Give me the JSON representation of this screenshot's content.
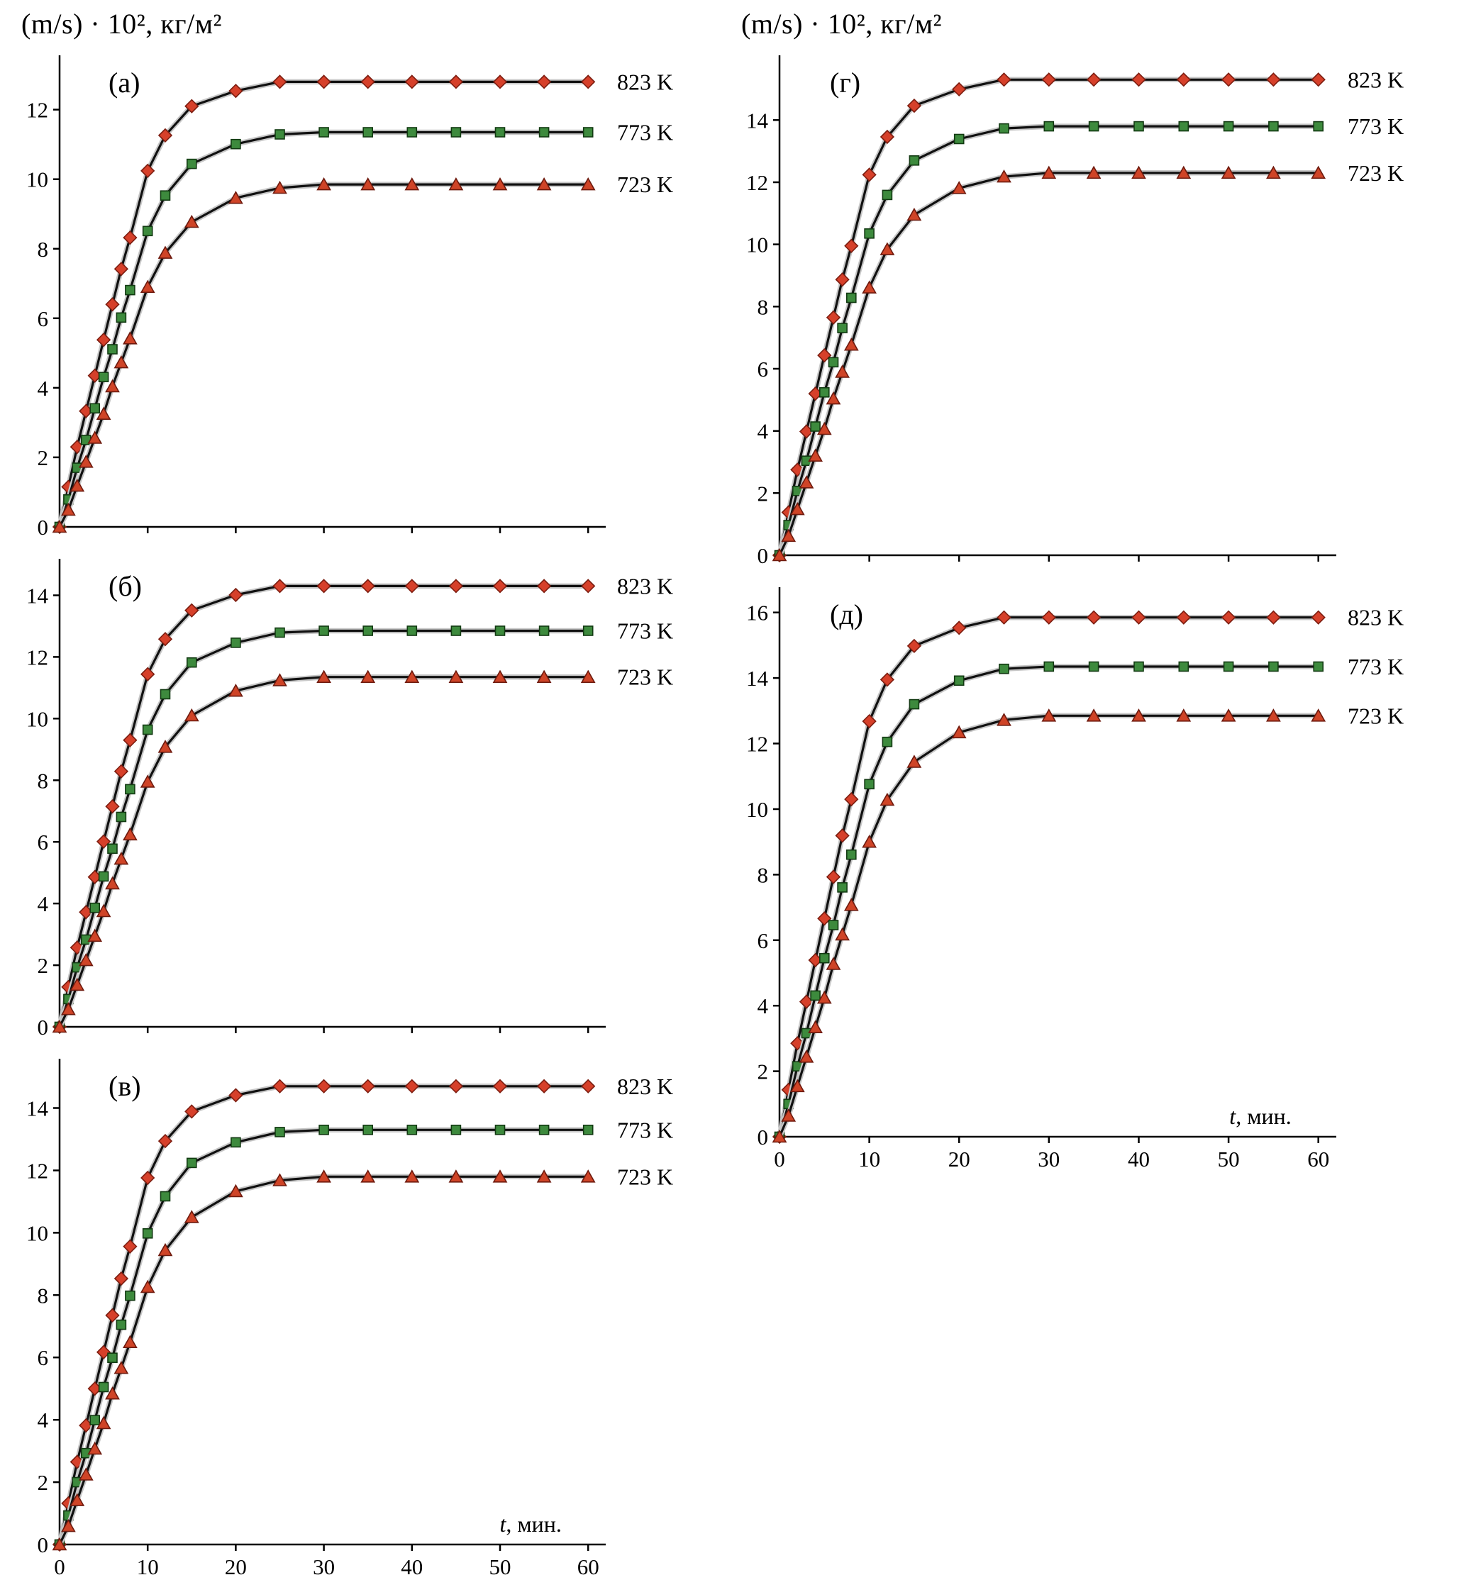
{
  "y_axis_title": "(m/s) · 10², кг/м²",
  "x_axis_title": "t, мин.",
  "colors": {
    "line": "#111111",
    "line_halo": "#c7c7c7",
    "axis": "#000000",
    "series_823_fill": "#d6402a",
    "series_823_stroke": "#7c1d10",
    "series_773_fill": "#3d8a3d",
    "series_773_stroke": "#123a12",
    "series_723_fill": "#cf4427",
    "series_723_stroke": "#6e1a0e"
  },
  "chart_data": [
    {
      "type": "line",
      "panel": "(а)",
      "xlabel": null,
      "xlim": [
        0,
        62
      ],
      "ylim": [
        0,
        13.4
      ],
      "x_ticks": [
        0,
        10,
        20,
        30,
        40,
        50,
        60
      ],
      "show_x_tick_labels": false,
      "y_ticks": [
        0,
        2,
        4,
        6,
        8,
        10,
        12
      ],
      "x": [
        0,
        1,
        2,
        3,
        4,
        5,
        6,
        7,
        8,
        10,
        12,
        15,
        20,
        25,
        30,
        35,
        40,
        45,
        50,
        55,
        60
      ],
      "series": [
        {
          "name": "823 K",
          "marker": "diamond",
          "fill": "#d6402a",
          "stroke": "#7c1d10",
          "values": [
            0,
            1.15,
            2.3,
            3.33,
            4.35,
            5.38,
            6.4,
            7.42,
            8.32,
            10.24,
            11.26,
            12.1,
            12.54,
            12.8,
            12.8,
            12.8,
            12.8,
            12.8,
            12.8,
            12.8,
            12.8
          ]
        },
        {
          "name": "773 K",
          "marker": "square",
          "fill": "#3d8a3d",
          "stroke": "#123a12",
          "values": [
            0,
            0.79,
            1.7,
            2.5,
            3.41,
            4.31,
            5.11,
            6.02,
            6.81,
            8.51,
            9.53,
            10.44,
            11.01,
            11.29,
            11.35,
            11.35,
            11.35,
            11.35,
            11.35,
            11.35,
            11.35
          ]
        },
        {
          "name": "723 K",
          "marker": "triangle",
          "fill": "#cf4427",
          "stroke": "#6e1a0e",
          "values": [
            0,
            0.49,
            1.18,
            1.87,
            2.56,
            3.25,
            4.04,
            4.73,
            5.42,
            6.9,
            7.88,
            8.77,
            9.46,
            9.75,
            9.85,
            9.85,
            9.85,
            9.85,
            9.85,
            9.85,
            9.85
          ]
        }
      ]
    },
    {
      "type": "line",
      "panel": "(б)",
      "xlabel": null,
      "xlim": [
        0,
        62
      ],
      "ylim": [
        0,
        15.0
      ],
      "x_ticks": [
        0,
        10,
        20,
        30,
        40,
        50,
        60
      ],
      "show_x_tick_labels": false,
      "y_ticks": [
        0,
        2,
        4,
        6,
        8,
        10,
        12,
        14
      ],
      "x": [
        0,
        1,
        2,
        3,
        4,
        5,
        6,
        7,
        8,
        10,
        12,
        15,
        20,
        25,
        30,
        35,
        40,
        45,
        50,
        55,
        60
      ],
      "series": [
        {
          "name": "823 K",
          "marker": "diamond",
          "fill": "#d6402a",
          "stroke": "#7c1d10",
          "values": [
            0,
            1.29,
            2.57,
            3.72,
            4.86,
            6.01,
            7.15,
            8.29,
            9.3,
            11.44,
            12.58,
            13.51,
            14.01,
            14.3,
            14.3,
            14.3,
            14.3,
            14.3,
            14.3,
            14.3,
            14.3
          ]
        },
        {
          "name": "773 K",
          "marker": "square",
          "fill": "#3d8a3d",
          "stroke": "#123a12",
          "values": [
            0,
            0.9,
            1.93,
            2.83,
            3.86,
            4.88,
            5.78,
            6.81,
            7.71,
            9.64,
            10.79,
            11.82,
            12.46,
            12.79,
            12.85,
            12.85,
            12.85,
            12.85,
            12.85,
            12.85,
            12.85
          ]
        },
        {
          "name": "723 K",
          "marker": "triangle",
          "fill": "#cf4427",
          "stroke": "#6e1a0e",
          "values": [
            0,
            0.57,
            1.36,
            2.16,
            2.95,
            3.75,
            4.65,
            5.45,
            6.24,
            7.95,
            9.08,
            10.1,
            10.9,
            11.24,
            11.35,
            11.35,
            11.35,
            11.35,
            11.35,
            11.35,
            11.35
          ]
        }
      ]
    },
    {
      "type": "line",
      "panel": "(в)",
      "xlabel": "t, мин.",
      "xlim": [
        0,
        62
      ],
      "ylim": [
        0,
        15.4
      ],
      "x_ticks": [
        0,
        10,
        20,
        30,
        40,
        50,
        60
      ],
      "show_x_tick_labels": true,
      "y_ticks": [
        0,
        2,
        4,
        6,
        8,
        10,
        12,
        14
      ],
      "x": [
        0,
        1,
        2,
        3,
        4,
        5,
        6,
        7,
        8,
        10,
        12,
        15,
        20,
        25,
        30,
        35,
        40,
        45,
        50,
        55,
        60
      ],
      "series": [
        {
          "name": "823 K",
          "marker": "diamond",
          "fill": "#d6402a",
          "stroke": "#7c1d10",
          "values": [
            0,
            1.32,
            2.65,
            3.82,
            5.0,
            6.17,
            7.35,
            8.53,
            9.56,
            11.76,
            12.94,
            13.89,
            14.41,
            14.7,
            14.7,
            14.7,
            14.7,
            14.7,
            14.7,
            14.7,
            14.7
          ]
        },
        {
          "name": "773 K",
          "marker": "square",
          "fill": "#3d8a3d",
          "stroke": "#123a12",
          "values": [
            0,
            0.93,
            2.0,
            2.93,
            3.99,
            5.05,
            5.99,
            7.05,
            7.98,
            9.98,
            11.17,
            12.24,
            12.9,
            13.23,
            13.3,
            13.3,
            13.3,
            13.3,
            13.3,
            13.3,
            13.3
          ]
        },
        {
          "name": "723 K",
          "marker": "triangle",
          "fill": "#cf4427",
          "stroke": "#6e1a0e",
          "values": [
            0,
            0.59,
            1.42,
            2.24,
            3.07,
            3.89,
            4.84,
            5.66,
            6.49,
            8.26,
            9.44,
            10.5,
            11.33,
            11.68,
            11.8,
            11.8,
            11.8,
            11.8,
            11.8,
            11.8,
            11.8
          ]
        }
      ]
    },
    {
      "type": "line",
      "panel": "(г)",
      "xlabel": null,
      "xlim": [
        0,
        62
      ],
      "ylim": [
        0,
        15.9
      ],
      "x_ticks": [
        0,
        10,
        20,
        30,
        40,
        50,
        60
      ],
      "show_x_tick_labels": false,
      "y_ticks": [
        0,
        2,
        4,
        6,
        8,
        10,
        12,
        14
      ],
      "x": [
        0,
        1,
        2,
        3,
        4,
        5,
        6,
        7,
        8,
        10,
        12,
        15,
        20,
        25,
        30,
        35,
        40,
        45,
        50,
        55,
        60
      ],
      "series": [
        {
          "name": "823 K",
          "marker": "diamond",
          "fill": "#d6402a",
          "stroke": "#7c1d10",
          "values": [
            0,
            1.38,
            2.75,
            3.98,
            5.2,
            6.43,
            7.65,
            8.87,
            9.95,
            12.24,
            13.46,
            14.46,
            14.99,
            15.3,
            15.3,
            15.3,
            15.3,
            15.3,
            15.3,
            15.3,
            15.3
          ]
        },
        {
          "name": "773 K",
          "marker": "square",
          "fill": "#3d8a3d",
          "stroke": "#123a12",
          "values": [
            0,
            0.97,
            2.07,
            3.04,
            4.14,
            5.24,
            6.21,
            7.31,
            8.28,
            10.35,
            11.59,
            12.7,
            13.39,
            13.73,
            13.8,
            13.8,
            13.8,
            13.8,
            13.8,
            13.8,
            13.8
          ]
        },
        {
          "name": "723 K",
          "marker": "triangle",
          "fill": "#cf4427",
          "stroke": "#6e1a0e",
          "values": [
            0,
            0.62,
            1.48,
            2.34,
            3.2,
            4.06,
            5.04,
            5.9,
            6.77,
            8.61,
            9.84,
            10.95,
            11.81,
            12.18,
            12.3,
            12.3,
            12.3,
            12.3,
            12.3,
            12.3,
            12.3
          ]
        }
      ]
    },
    {
      "type": "line",
      "panel": "(д)",
      "xlabel": "t, мин.",
      "xlim": [
        0,
        62
      ],
      "ylim": [
        0,
        16.6
      ],
      "x_ticks": [
        0,
        10,
        20,
        30,
        40,
        50,
        60
      ],
      "show_x_tick_labels": true,
      "y_ticks": [
        0,
        2,
        4,
        6,
        8,
        10,
        12,
        14,
        16
      ],
      "x": [
        0,
        1,
        2,
        3,
        4,
        5,
        6,
        7,
        8,
        10,
        12,
        15,
        20,
        25,
        30,
        35,
        40,
        45,
        50,
        55,
        60
      ],
      "series": [
        {
          "name": "823 K",
          "marker": "diamond",
          "fill": "#d6402a",
          "stroke": "#7c1d10",
          "values": [
            0,
            1.43,
            2.85,
            4.12,
            5.39,
            6.66,
            7.93,
            9.19,
            10.3,
            12.68,
            13.95,
            14.98,
            15.53,
            15.85,
            15.85,
            15.85,
            15.85,
            15.85,
            15.85,
            15.85,
            15.85
          ]
        },
        {
          "name": "773 K",
          "marker": "square",
          "fill": "#3d8a3d",
          "stroke": "#123a12",
          "values": [
            0,
            1.0,
            2.15,
            3.16,
            4.31,
            5.45,
            6.46,
            7.61,
            8.61,
            10.76,
            12.05,
            13.2,
            13.92,
            14.28,
            14.35,
            14.35,
            14.35,
            14.35,
            14.35,
            14.35,
            14.35
          ]
        },
        {
          "name": "723 K",
          "marker": "triangle",
          "fill": "#cf4427",
          "stroke": "#6e1a0e",
          "values": [
            0,
            0.64,
            1.54,
            2.44,
            3.34,
            4.24,
            5.27,
            6.17,
            7.07,
            9.0,
            10.28,
            11.44,
            12.34,
            12.72,
            12.85,
            12.85,
            12.85,
            12.85,
            12.85,
            12.85,
            12.85
          ]
        }
      ]
    }
  ]
}
